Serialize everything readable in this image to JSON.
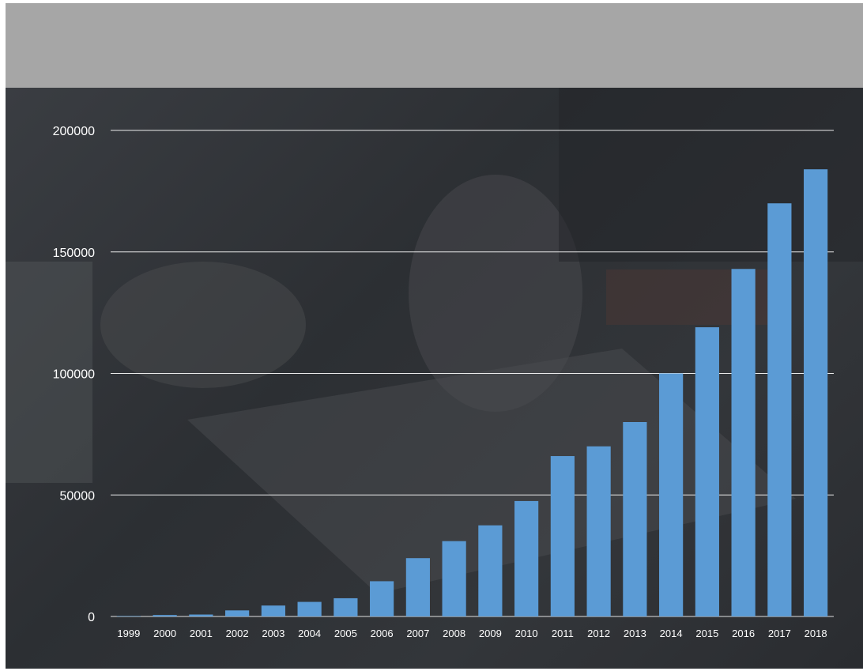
{
  "chart_data": {
    "type": "bar",
    "title": "",
    "xlabel": "",
    "ylabel": "",
    "categories": [
      "1999",
      "2000",
      "2001",
      "2002",
      "2003",
      "2004",
      "2005",
      "2006",
      "2007",
      "2008",
      "2009",
      "2010",
      "2011",
      "2012",
      "2013",
      "2014",
      "2015",
      "2016",
      "2017",
      "2018"
    ],
    "values": [
      200,
      600,
      800,
      2500,
      4500,
      6000,
      7500,
      14500,
      24000,
      31000,
      37500,
      47500,
      66000,
      70000,
      80000,
      100000,
      119000,
      143000,
      170000,
      184000
    ],
    "ylim": [
      0,
      200000
    ],
    "yticks": [
      0,
      50000,
      100000,
      150000,
      200000
    ],
    "grid": true,
    "bar_color": "#5b9bd5",
    "gridline_color": "#ffffff",
    "text_color": "#ffffff"
  }
}
